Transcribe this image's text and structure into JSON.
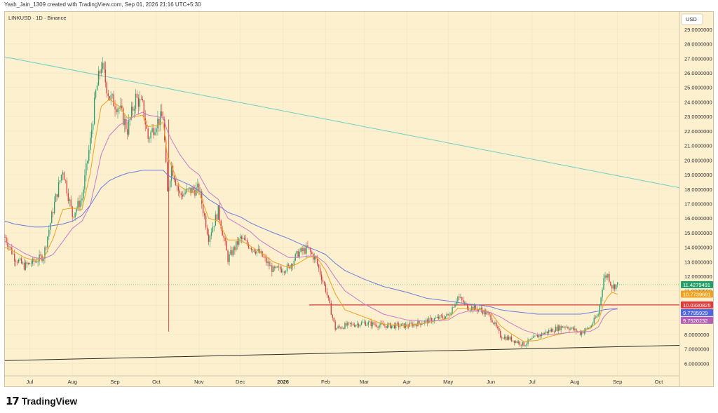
{
  "header": {
    "caption": "Yash_Jain_1309 created with TradingView.com, Sep 01, 2026 21:16 UTC+5:30"
  },
  "symbol_line": "LINKUSD · 1D · Binance",
  "brand": {
    "mark": "17",
    "name": "TradingView"
  },
  "colors": {
    "background": "#fdf0cf",
    "up": "#2e9e6e",
    "down": "#d8413f",
    "ema_short": "#f0a21c",
    "ema_mid": "#c97ac7",
    "ema_long": "#6a7bdc",
    "downtrend_line": "#6dcfc2",
    "support_line": "#2b2b2b",
    "horizontal_level": "#e23b3b"
  },
  "chart_data": {
    "type": "line",
    "title": "LINKUSD · 1D · Binance",
    "currency": "USD",
    "y_scale": "linear",
    "ylim": [
      5.2,
      30.2
    ],
    "xlabel": "",
    "ylabel": "",
    "y_ticks": [
      "6.0000000",
      "7.0000000",
      "8.0000000",
      "9.0000000",
      "10.0000000",
      "11.0000000",
      "12.0000000",
      "13.0000000",
      "14.0000000",
      "15.0000000",
      "16.0000000",
      "17.0000000",
      "18.0000000",
      "19.0000000",
      "20.0000000",
      "21.0000000",
      "22.0000000",
      "23.0000000",
      "24.0000000",
      "25.0000000",
      "26.0000000",
      "27.0000000",
      "28.0000000",
      "29.0000000"
    ],
    "x_ticks": [
      "Jul",
      "Aug",
      "Sep",
      "Oct",
      "Nov",
      "Dec",
      "2026",
      "Feb",
      "Mar",
      "Apr",
      "May",
      "Jun",
      "Jul",
      "Aug",
      "Sep",
      "Oct"
    ],
    "x_tick_dates": [
      "2025-07-01",
      "2025-08-01",
      "2025-09-01",
      "2025-10-01",
      "2025-11-01",
      "2025-12-01",
      "2026-01-01",
      "2026-02-01",
      "2026-03-01",
      "2026-04-01",
      "2026-05-01",
      "2026-06-01",
      "2026-07-01",
      "2026-08-01",
      "2026-09-01",
      "2026-10-01"
    ],
    "xlim": [
      "2025-06-13",
      "2026-10-16"
    ],
    "close_series": {
      "dates": [
        "2025-06-13",
        "2025-06-20",
        "2025-06-27",
        "2025-07-04",
        "2025-07-11",
        "2025-07-18",
        "2025-07-25",
        "2025-08-01",
        "2025-08-08",
        "2025-08-14",
        "2025-08-18",
        "2025-08-22",
        "2025-08-28",
        "2025-09-04",
        "2025-09-10",
        "2025-09-16",
        "2025-09-21",
        "2025-09-25",
        "2025-10-01",
        "2025-10-06",
        "2025-10-09",
        "2025-10-12",
        "2025-10-18",
        "2025-10-25",
        "2025-11-01",
        "2025-11-08",
        "2025-11-15",
        "2025-11-22",
        "2025-12-01",
        "2025-12-08",
        "2025-12-15",
        "2025-12-25",
        "2026-01-05",
        "2026-01-12",
        "2026-01-19",
        "2026-01-25",
        "2026-02-01",
        "2026-02-08",
        "2026-02-15",
        "2026-03-01",
        "2026-03-15",
        "2026-04-01",
        "2026-04-15",
        "2026-05-01",
        "2026-05-08",
        "2026-05-15",
        "2026-05-25",
        "2026-06-01",
        "2026-06-08",
        "2026-06-15",
        "2026-06-25",
        "2026-07-05",
        "2026-07-15",
        "2026-07-25",
        "2026-08-05",
        "2026-08-12",
        "2026-08-18",
        "2026-08-22",
        "2026-08-25",
        "2026-08-28",
        "2026-09-01"
      ],
      "values": [
        14.7,
        13.3,
        12.7,
        13.0,
        13.4,
        16.6,
        19.4,
        16.2,
        17.4,
        21.3,
        24.6,
        26.6,
        24.3,
        23.6,
        22.1,
        24.3,
        23.7,
        21.5,
        22.6,
        23.0,
        17.7,
        19.6,
        17.6,
        17.9,
        18.0,
        14.7,
        16.5,
        13.2,
        14.6,
        14.1,
        13.6,
        12.4,
        12.6,
        13.6,
        13.9,
        13.1,
        11.1,
        8.4,
        8.6,
        8.8,
        8.6,
        8.6,
        8.9,
        9.3,
        10.6,
        9.9,
        9.7,
        9.2,
        7.9,
        7.7,
        7.3,
        7.9,
        8.3,
        8.6,
        8.1,
        8.5,
        9.4,
        11.9,
        12.1,
        11.3,
        11.43
      ]
    },
    "series": [
      {
        "values": [
          14.0,
          13.7,
          13.3,
          13.1,
          13.2,
          14.6,
          16.6,
          16.7,
          16.6,
          19.1,
          21.6,
          23.7,
          24.2,
          23.7,
          22.9,
          23.0,
          23.1,
          22.3,
          22.4,
          22.6,
          20.3,
          19.6,
          18.2,
          17.8,
          17.8,
          16.0,
          15.8,
          14.5,
          14.5,
          14.1,
          13.7,
          13.0,
          12.6,
          12.9,
          13.3,
          13.4,
          12.4,
          10.8,
          9.7,
          9.2,
          8.7,
          8.6,
          8.8,
          9.1,
          9.8,
          9.8,
          9.7,
          9.5,
          8.6,
          8.1,
          7.5,
          7.6,
          7.9,
          8.1,
          8.2,
          8.4,
          8.9,
          10.1,
          10.6,
          10.9,
          10.77
        ]
      },
      {
        "values": [
          14.4,
          14.0,
          13.6,
          13.3,
          13.2,
          13.5,
          14.4,
          15.3,
          15.8,
          16.9,
          18.6,
          20.4,
          21.7,
          22.4,
          22.7,
          23.1,
          23.3,
          23.1,
          23.0,
          22.9,
          22.0,
          21.4,
          20.4,
          19.5,
          19.0,
          17.8,
          17.3,
          16.0,
          15.5,
          15.1,
          14.5,
          13.9,
          13.3,
          13.3,
          13.4,
          13.4,
          12.9,
          11.9,
          11.0,
          10.1,
          9.4,
          9.0,
          8.9,
          9.0,
          9.4,
          9.6,
          9.6,
          9.5,
          9.2,
          8.8,
          8.3,
          8.0,
          8.0,
          8.1,
          8.2,
          8.2,
          8.5,
          9.2,
          9.5,
          9.7,
          9.75
        ]
      },
      {
        "values": [
          15.8,
          15.6,
          15.5,
          15.4,
          15.4,
          15.5,
          15.6,
          15.8,
          16.2,
          16.9,
          17.5,
          18.1,
          18.6,
          18.9,
          19.1,
          19.2,
          19.3,
          19.3,
          19.3,
          19.3,
          19.0,
          18.8,
          18.6,
          18.3,
          17.9,
          17.3,
          16.9,
          16.4,
          16.1,
          15.7,
          15.4,
          15.0,
          14.6,
          14.3,
          14.0,
          13.8,
          13.5,
          12.9,
          12.4,
          11.8,
          11.3,
          10.9,
          10.5,
          10.3,
          10.2,
          10.1,
          10.0,
          9.9,
          9.7,
          9.6,
          9.5,
          9.4,
          9.4,
          9.4,
          9.4,
          9.5,
          9.6,
          9.7,
          9.73,
          9.76,
          9.78
        ]
      }
    ],
    "downtrend_line": {
      "from": [
        "2025-06-13",
        27.1
      ],
      "to": [
        "2026-10-16",
        18.1
      ]
    },
    "support_line": {
      "from": [
        "2025-06-13",
        6.2
      ],
      "to": [
        "2026-10-16",
        7.25
      ]
    },
    "horizontal_level": {
      "value": 10.0330825,
      "from": "2026-01-20",
      "to": "2026-10-16"
    },
    "wick_spike": {
      "date": "2025-10-10",
      "high": 22.8,
      "low": 8.2
    },
    "current_price_line": 11.4279491,
    "price_labels": [
      {
        "text": "11.4279491",
        "value": 11.4279491,
        "color": "#23a06a"
      },
      {
        "text": "10.7739691",
        "value": 10.7739691,
        "color": "#f0a21c"
      },
      {
        "text": "10.0330825",
        "value": 10.0330825,
        "color": "#e23b3b"
      },
      {
        "text": "9.7795929",
        "value": 9.7795929,
        "color": "#4f66e0"
      },
      {
        "text": "9.7520232",
        "value": 9.7520232,
        "color": "#b25fb4"
      }
    ]
  }
}
